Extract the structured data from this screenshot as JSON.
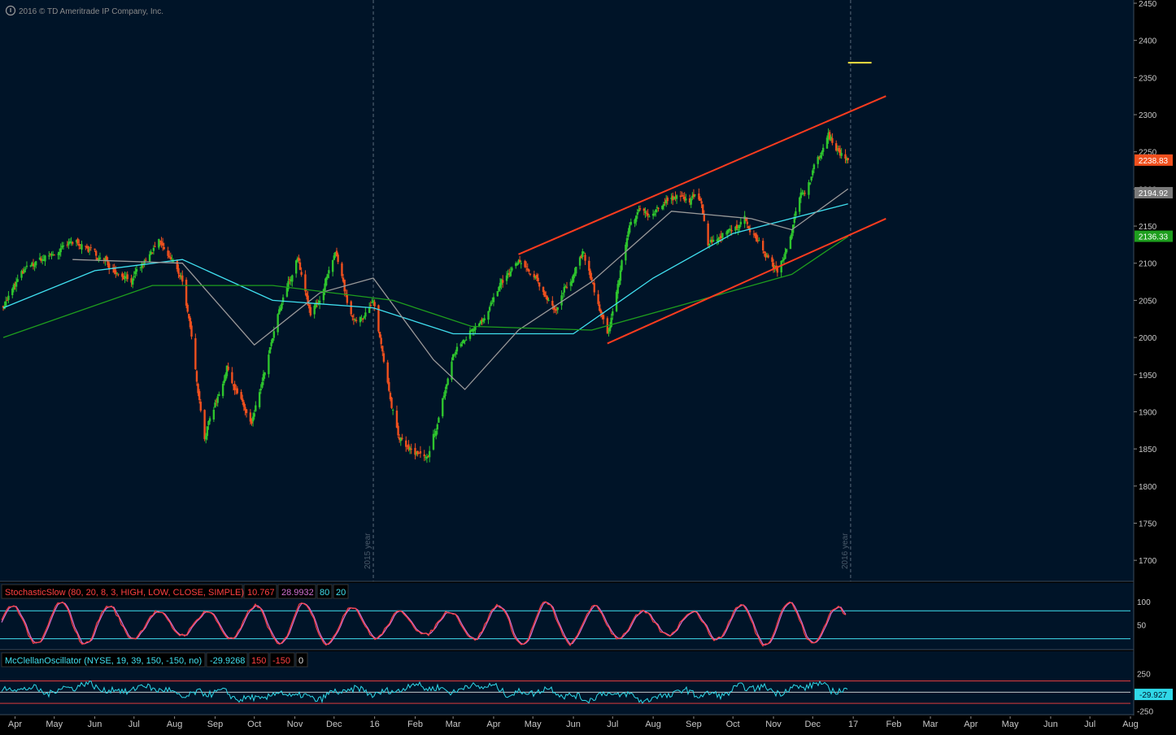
{
  "copyright": "2016 © TD Ameritrade IP Company, Inc.",
  "colors": {
    "background": "#001428",
    "panel_border": "#3a4a5a",
    "up_bar": "#2ec42e",
    "down_bar": "#f0501e",
    "channel": "#ff3c1e",
    "ma_cyan": "#40e0f0",
    "ma_gray": "#9a9a9a",
    "ma_green": "#1e9e1e",
    "stoch_k": "#ff4040",
    "stoch_d": "#d070d0",
    "mcclellan": "#30d8e8",
    "axis_text": "#c8c8c8",
    "target_marker": "#f0e040"
  },
  "chart_data": [
    {
      "type": "candlestick",
      "title": "",
      "ylim": [
        1675,
        2450
      ],
      "yticks": [
        1700,
        1750,
        1800,
        1850,
        1900,
        1950,
        2000,
        2050,
        2100,
        2150,
        2200,
        2250,
        2300,
        2350,
        2400,
        2450
      ],
      "x_date_range": [
        "2015-03-23",
        "2017-08-01"
      ],
      "price_path": [
        [
          "2015-03-23",
          2045
        ],
        [
          "2015-04-07",
          2085
        ],
        [
          "2015-04-22",
          2105
        ],
        [
          "2015-05-20",
          2128
        ],
        [
          "2015-06-10",
          2100
        ],
        [
          "2015-07-01",
          2080
        ],
        [
          "2015-07-20",
          2125
        ],
        [
          "2015-08-07",
          2080
        ],
        [
          "2015-08-24",
          1870
        ],
        [
          "2015-09-10",
          1960
        ],
        [
          "2015-09-29",
          1880
        ],
        [
          "2015-10-20",
          2030
        ],
        [
          "2015-11-03",
          2110
        ],
        [
          "2015-11-13",
          2025
        ],
        [
          "2015-12-02",
          2105
        ],
        [
          "2015-12-15",
          2020
        ],
        [
          "2015-12-31",
          2045
        ],
        [
          "2016-01-20",
          1860
        ],
        [
          "2016-02-11",
          1830
        ],
        [
          "2016-03-01",
          1975
        ],
        [
          "2016-04-20",
          2100
        ],
        [
          "2016-05-19",
          2040
        ],
        [
          "2016-06-08",
          2115
        ],
        [
          "2016-06-27",
          2000
        ],
        [
          "2016-07-15",
          2160
        ],
        [
          "2016-08-15",
          2185
        ],
        [
          "2016-09-07",
          2185
        ],
        [
          "2016-09-12",
          2130
        ],
        [
          "2016-10-10",
          2160
        ],
        [
          "2016-11-04",
          2085
        ],
        [
          "2016-11-20",
          2180
        ],
        [
          "2016-12-13",
          2270
        ],
        [
          "2016-12-28",
          2238.83
        ]
      ],
      "last_price": "2238.83",
      "markers": [
        "2194.92",
        "2136.33"
      ],
      "moving_averages": [
        {
          "color": "#40e0f0",
          "path": [
            [
              "2015-03-23",
              2040
            ],
            [
              "2015-06-01",
              2090
            ],
            [
              "2015-08-07",
              2105
            ],
            [
              "2015-10-15",
              2050
            ],
            [
              "2015-12-31",
              2040
            ],
            [
              "2016-03-01",
              2005
            ],
            [
              "2016-06-01",
              2005
            ],
            [
              "2016-08-01",
              2080
            ],
            [
              "2016-10-01",
              2140
            ],
            [
              "2016-12-28",
              2180
            ]
          ]
        },
        {
          "color": "#9a9a9a",
          "path": [
            [
              "2015-05-15",
              2105
            ],
            [
              "2015-08-07",
              2100
            ],
            [
              "2015-10-01",
              1990
            ],
            [
              "2015-11-20",
              2060
            ],
            [
              "2015-12-31",
              2080
            ],
            [
              "2016-02-15",
              1970
            ],
            [
              "2016-03-10",
              1930
            ],
            [
              "2016-04-20",
              2010
            ],
            [
              "2016-06-15",
              2075
            ],
            [
              "2016-08-15",
              2170
            ],
            [
              "2016-10-15",
              2160
            ],
            [
              "2016-11-15",
              2145
            ],
            [
              "2016-12-28",
              2200
            ]
          ]
        },
        {
          "color": "#1e9e1e",
          "path": [
            [
              "2015-03-23",
              2000
            ],
            [
              "2015-07-15",
              2070
            ],
            [
              "2015-10-15",
              2070
            ],
            [
              "2016-01-15",
              2050
            ],
            [
              "2016-03-15",
              2015
            ],
            [
              "2016-06-15",
              2010
            ],
            [
              "2016-09-15",
              2055
            ],
            [
              "2016-11-15",
              2085
            ],
            [
              "2016-12-28",
              2136
            ]
          ]
        }
      ],
      "trendlines": [
        {
          "from": [
            "2016-04-20",
            2112
          ],
          "to": [
            "2017-01-26",
            2325
          ],
          "color": "#ff3c1e"
        },
        {
          "from": [
            "2016-06-27",
            1992
          ],
          "to": [
            "2017-01-26",
            2160
          ],
          "color": "#ff3c1e"
        }
      ],
      "target": {
        "from": "2016-12-28",
        "to": "2017-01-15",
        "value": 2370
      },
      "year_markers": [
        {
          "date": "2015-12-31",
          "label": "2015 year"
        },
        {
          "date": "2016-12-30",
          "label": "2016 year"
        }
      ]
    },
    {
      "type": "line",
      "title": "StochasticSlow (80, 20, 8, 3, HIGH, LOW, CLOSE, SIMPLE)",
      "legend_values": [
        "10.767",
        "28.9932",
        "80",
        "20"
      ],
      "ylim": [
        0,
        105
      ],
      "yticks": [
        "100",
        "50"
      ],
      "guides": [
        80,
        20
      ]
    },
    {
      "type": "line",
      "title": "McClellanOscillator (NYSE, 19, 39, 150, -150, no)",
      "legend_values": [
        "-29.9268",
        "150",
        "-150",
        "0"
      ],
      "ylim": [
        -280,
        320
      ],
      "yticks": [
        "250",
        "-250"
      ],
      "guides": [
        150,
        -150,
        0
      ],
      "last_value": "-29.927"
    }
  ],
  "x_axis": {
    "labels": [
      "Apr",
      "May",
      "Jun",
      "Jul",
      "Aug",
      "Sep",
      "Oct",
      "Nov",
      "Dec",
      "16",
      "Feb",
      "Mar",
      "Apr",
      "May",
      "Jun",
      "Jul",
      "Aug",
      "Sep",
      "Oct",
      "Nov",
      "Dec",
      "17",
      "Feb",
      "Mar",
      "Apr",
      "May",
      "Jun",
      "Jul",
      "Aug"
    ],
    "dates": [
      "2015-04-01",
      "2015-05-01",
      "2015-06-01",
      "2015-07-01",
      "2015-08-01",
      "2015-09-01",
      "2015-10-01",
      "2015-11-01",
      "2015-12-01",
      "2016-01-01",
      "2016-02-01",
      "2016-03-01",
      "2016-04-01",
      "2016-05-01",
      "2016-06-01",
      "2016-07-01",
      "2016-08-01",
      "2016-09-01",
      "2016-10-01",
      "2016-11-01",
      "2016-12-01",
      "2017-01-01",
      "2017-02-01",
      "2017-03-01",
      "2017-04-01",
      "2017-05-01",
      "2017-06-01",
      "2017-07-01",
      "2017-08-01"
    ]
  }
}
